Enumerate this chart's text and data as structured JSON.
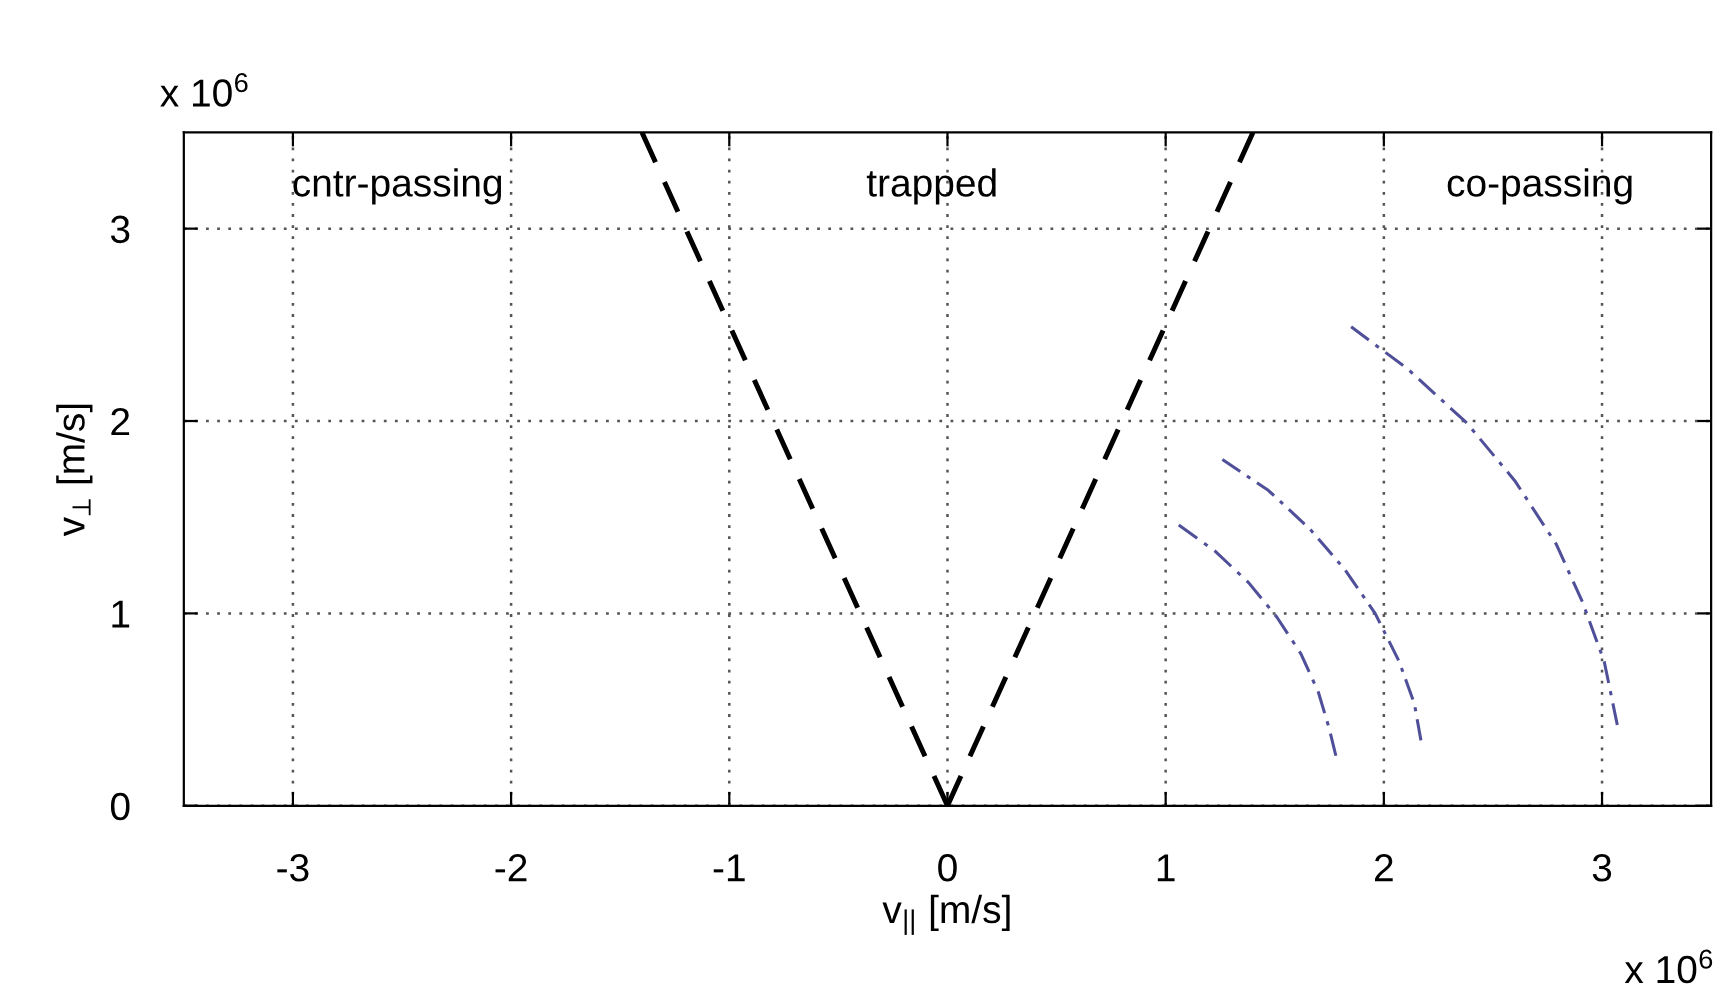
{
  "chart_data": {
    "type": "line",
    "xlabel": "v$_{||}$ [m/s]",
    "ylabel": "v$_{⊥}$ [m/s]",
    "xlim": [
      -3.5,
      3.5
    ],
    "ylim": [
      0,
      3.5
    ],
    "xticks": [
      -3,
      -2,
      -1,
      0,
      1,
      2,
      3
    ],
    "yticks": [
      0,
      1,
      2,
      3
    ],
    "grid": true,
    "series": [
      {
        "color": "#000000",
        "line_style": "dashed",
        "x": [
          -1.4,
          0
        ],
        "values": [
          3.5,
          0
        ]
      },
      {
        "color": "#000000",
        "line_style": "dashed",
        "x": [
          0,
          1.4
        ],
        "values": [
          0,
          3.5
        ]
      },
      {
        "color": "#50509a",
        "line_style": "dashdot",
        "x": [
          1.06,
          1.23,
          1.38,
          1.51,
          1.62,
          1.7,
          1.75,
          1.78
        ],
        "values": [
          1.46,
          1.32,
          1.16,
          0.98,
          0.79,
          0.59,
          0.4,
          0.26
        ]
      },
      {
        "color": "#50509a",
        "line_style": "dashdot",
        "x": [
          1.26,
          1.47,
          1.66,
          1.82,
          1.96,
          2.07,
          2.14,
          2.17
        ],
        "values": [
          1.8,
          1.64,
          1.44,
          1.23,
          1.0,
          0.75,
          0.53,
          0.34
        ]
      },
      {
        "color": "#50509a",
        "line_style": "dashdot",
        "x": [
          1.85,
          2.11,
          2.38,
          2.6,
          2.79,
          2.91,
          3.01,
          3.07
        ],
        "values": [
          2.49,
          2.27,
          1.99,
          1.69,
          1.36,
          1.06,
          0.75,
          0.42
        ]
      }
    ],
    "annotations": [
      "cntr-passing",
      "trapped",
      "co-passing",
      "x 10$^{6}$",
      "x 10$^{6}$"
    ]
  }
}
